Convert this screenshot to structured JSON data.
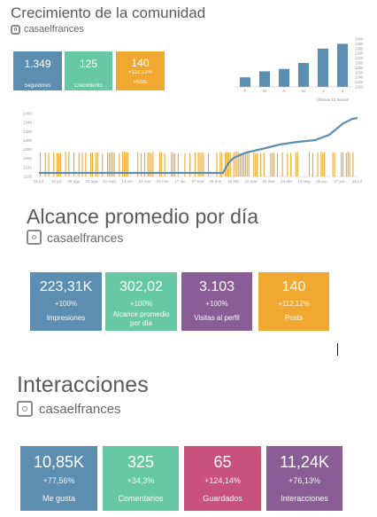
{
  "growth": {
    "title": "Crecimiento de la comunidad",
    "handle": "casaelfrances",
    "cards": [
      {
        "value": "1.349",
        "change": "",
        "label": "Seguidores",
        "color": "#5b8eb0"
      },
      {
        "value": "125",
        "change": "",
        "label": "Crecimiento",
        "color": "#67c9a3"
      },
      {
        "value": "140",
        "change": "+112,12%",
        "label": "Posts",
        "color": "#f0a830"
      }
    ],
    "monthly_chart": {
      "type": "bar",
      "categories": [
        "F",
        "M",
        "A",
        "M",
        "J",
        "J"
      ],
      "values": [
        1240,
        1265,
        1275,
        1300,
        1360,
        1380
      ],
      "ylim": [
        1200,
        1400
      ],
      "yticks": [
        "1400",
        "1380",
        "1360",
        "1340",
        "1320",
        "1300",
        "1280",
        "1260",
        "1240",
        "1220",
        "1200"
      ],
      "xlabel": "Últimos 13 meses",
      "color": "#5b8eb0"
    },
    "daily_chart": {
      "type": "line",
      "yticks": [
        "1360",
        "1340",
        "1320",
        "1300",
        "1280",
        "1260",
        "1240",
        "1220"
      ],
      "ylim": [
        1220,
        1360
      ],
      "xticks": [
        "01 jul.",
        "16 jul.",
        "08 ago.",
        "25 ago.",
        "22 sept.",
        "14 oct.",
        "04 nov.",
        "25 nov.",
        "17 dic.",
        "07 ene.",
        "29 ene.",
        "16 feb.",
        "10 mar.",
        "03 mar.",
        "24 abr.",
        "14 may.",
        "05 jun.",
        "27 jun.",
        "16 jul."
      ],
      "line_color": "#5b8eb0",
      "bar_color": "#f0a830"
    }
  },
  "reach": {
    "title": "Alcance promedio por día",
    "handle": "casaelfrances",
    "cards": [
      {
        "value": "223,31K",
        "change": "+100%",
        "label": "Impresiones",
        "color": "#5b8eb0"
      },
      {
        "value": "302,02",
        "change": "+100%",
        "label": "Alcance promedio por día",
        "color": "#67c9a3"
      },
      {
        "value": "3.103",
        "change": "+100%",
        "label": "Visitas al perfil",
        "color": "#8b5d97"
      },
      {
        "value": "140",
        "change": "+112,12%",
        "label": "Posts",
        "color": "#f0a830"
      }
    ]
  },
  "interactions": {
    "title": "Interacciones",
    "handle": "casaelfrances",
    "cards": [
      {
        "value": "10,85K",
        "change": "+77,56%",
        "label": "Me gusta",
        "color": "#5b8eb0"
      },
      {
        "value": "325",
        "change": "+34,3%",
        "label": "Comentarios",
        "color": "#67c9a3"
      },
      {
        "value": "65",
        "change": "+124,14%",
        "label": "Guardados",
        "color": "#c8527c"
      },
      {
        "value": "11,24K",
        "change": "+76,13%",
        "label": "Interacciones",
        "color": "#8b5d97"
      }
    ]
  }
}
